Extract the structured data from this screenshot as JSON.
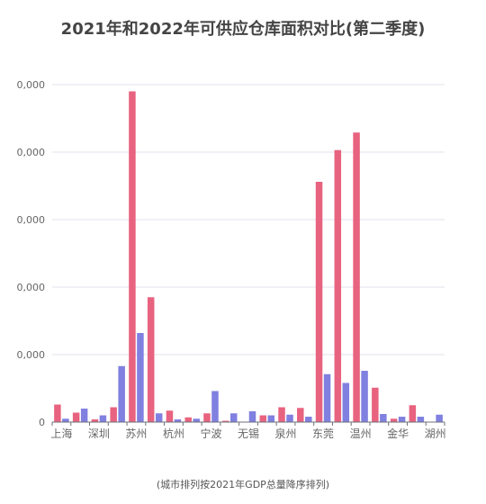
{
  "chart_data": {
    "type": "bar",
    "title": "2021年和2022年可供应仓库面积对比(第二季度)",
    "footnote": "(城市排列按2021年GDP总量降序排列)",
    "ylim": [
      0,
      50000
    ],
    "yticks": [
      0,
      10000,
      20000,
      30000,
      40000,
      50000
    ],
    "ytick_labels": [
      "0",
      "0,000",
      "0,000",
      "0,000",
      "0,000",
      "0,000"
    ],
    "categories": [
      "上海",
      "北京",
      "深圳",
      "广州",
      "苏州",
      "成都",
      "杭州",
      "重庆",
      "宁波",
      "武汉",
      "无锡",
      "南京",
      "泉州",
      "天津",
      "东莞",
      "佛山",
      "温州",
      "合肥",
      "金华",
      "昆明",
      "湖州"
    ],
    "x_tick_labels": [
      "上海",
      "",
      "深圳",
      "",
      "苏州",
      "",
      "杭州",
      "",
      "宁波",
      "",
      "无锡",
      "",
      "泉州",
      "",
      "东莞",
      "",
      "温州",
      "",
      "金华",
      "",
      "湖州"
    ],
    "series": [
      {
        "color": "#e8637f",
        "values": [
          2600,
          1400,
          400,
          2200,
          49000,
          18500,
          1700,
          700,
          1300,
          200,
          0,
          1000,
          2200,
          2100,
          35600,
          40300,
          42900,
          5100,
          500,
          2500,
          0
        ]
      },
      {
        "color": "#8080e0",
        "values": [
          500,
          2000,
          1000,
          8300,
          13200,
          1300,
          400,
          500,
          4600,
          1300,
          1600,
          1000,
          1100,
          800,
          7100,
          5800,
          7600,
          1200,
          800,
          800,
          1100
        ]
      }
    ]
  }
}
